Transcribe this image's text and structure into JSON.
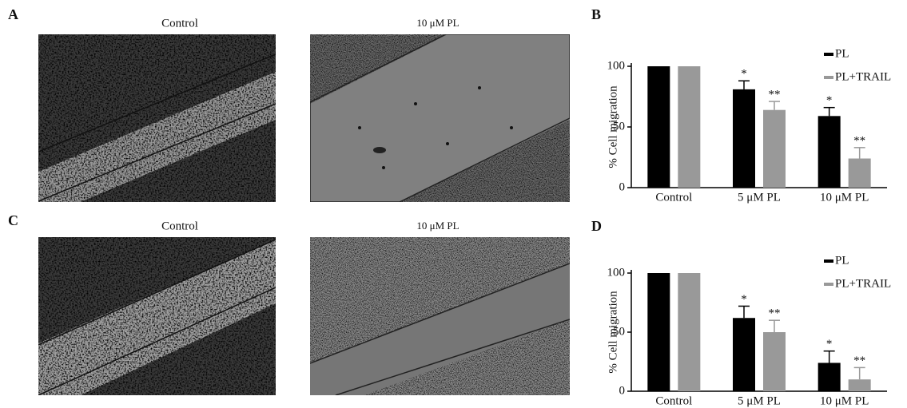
{
  "panels": {
    "a": "A",
    "b": "B",
    "c": "C",
    "d": "D"
  },
  "images": {
    "row1": [
      "Control",
      "10 μM PL"
    ],
    "row2": [
      "Control",
      "10 μM PL"
    ]
  },
  "chart_data": [
    {
      "type": "bar",
      "y_label": "% Cell migration",
      "categories": [
        "Control",
        "5 μM PL",
        "10 μM PL"
      ],
      "series": [
        {
          "name": "PL",
          "color": "#000000",
          "values": [
            100,
            81,
            59
          ],
          "errors": [
            0,
            7,
            7
          ],
          "marks": [
            null,
            "*",
            "*"
          ]
        },
        {
          "name": "PL+TRAIL",
          "color": "#999999",
          "values": [
            100,
            64,
            24
          ],
          "errors": [
            0,
            7,
            9
          ],
          "marks": [
            null,
            "**",
            "**"
          ]
        }
      ],
      "ylim": [
        0,
        100
      ],
      "yticks": [
        0,
        50,
        100
      ],
      "legend": "top-right",
      "grid": false
    },
    {
      "type": "bar",
      "y_label": "% Cell migration",
      "categories": [
        "Control",
        "5 μM PL",
        "10 μM PL"
      ],
      "series": [
        {
          "name": "PL",
          "color": "#000000",
          "values": [
            100,
            62,
            24
          ],
          "errors": [
            0,
            10,
            10
          ],
          "marks": [
            null,
            "*",
            "*"
          ]
        },
        {
          "name": "PL+TRAIL",
          "color": "#999999",
          "values": [
            100,
            50,
            10
          ],
          "errors": [
            0,
            10,
            10
          ],
          "marks": [
            null,
            "**",
            "**"
          ]
        }
      ],
      "ylim": [
        0,
        100
      ],
      "yticks": [
        0,
        50,
        100
      ],
      "legend": "top-right",
      "grid": false
    }
  ]
}
